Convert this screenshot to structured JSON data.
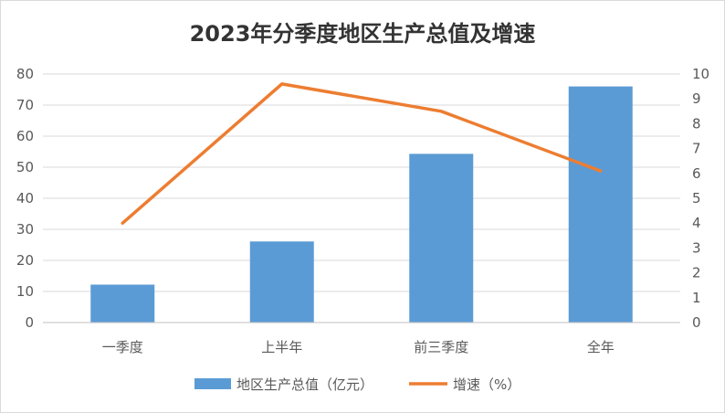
{
  "chart_data": {
    "type": "bar",
    "title": "2023年分季度地区生产总值及增速",
    "categories": [
      "一季度",
      "上半年",
      "前三季度",
      "全年"
    ],
    "series": [
      {
        "name": "地区生产总值（亿元）",
        "type": "bar",
        "axis": "left",
        "color": "#5B9BD5",
        "values": [
          12.2,
          26.1,
          54.3,
          76.0
        ]
      },
      {
        "name": "增速（%）",
        "type": "line",
        "axis": "right",
        "color": "#ED7D31",
        "values": [
          4.0,
          9.6,
          8.5,
          6.1
        ]
      }
    ],
    "y_left": {
      "min": 0,
      "max": 80,
      "step": 10,
      "ticks": [
        "0",
        "10",
        "20",
        "30",
        "40",
        "50",
        "60",
        "70",
        "80"
      ]
    },
    "y_right": {
      "min": 0,
      "max": 10,
      "step": 1,
      "ticks": [
        "0",
        "1",
        "2",
        "3",
        "4",
        "5",
        "6",
        "7",
        "8",
        "9",
        "10"
      ]
    },
    "gridlines": true,
    "legend_position": "bottom"
  }
}
